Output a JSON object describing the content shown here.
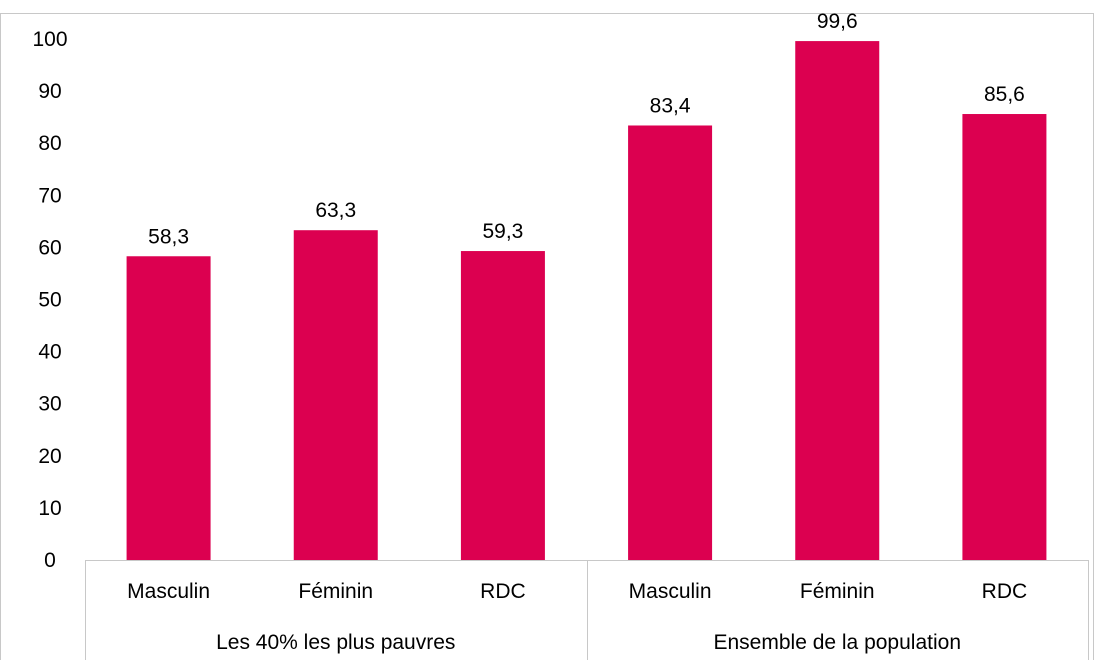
{
  "chart_data": {
    "type": "bar",
    "title": "",
    "xlabel": "",
    "ylabel": "",
    "ylim": [
      0,
      100
    ],
    "yticks": [
      0,
      10,
      20,
      30,
      40,
      50,
      60,
      70,
      80,
      90,
      100
    ],
    "grid": false,
    "legend": "none",
    "bar_color": "#dc0050",
    "groups": [
      {
        "label": "Les 40% les plus pauvres",
        "categories": [
          "Masculin",
          "Féminin",
          "RDC"
        ],
        "values": [
          58.3,
          63.3,
          59.3
        ],
        "value_labels": [
          "58,3",
          "63,3",
          "59,3"
        ]
      },
      {
        "label": "Ensemble de la population",
        "categories": [
          "Masculin",
          "Féminin",
          "RDC"
        ],
        "values": [
          83.4,
          99.6,
          85.6
        ],
        "value_labels": [
          "83,4",
          "99,6",
          "85,6"
        ]
      }
    ]
  }
}
